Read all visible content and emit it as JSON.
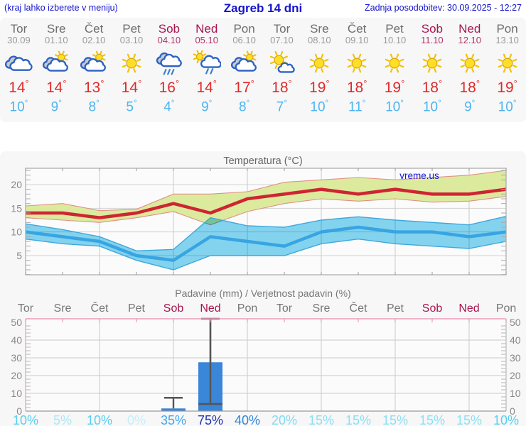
{
  "header": {
    "left_note": "(kraj lahko izberete v meniju)",
    "title": "Zagreb 14 dni",
    "last_update": "Zadnja posodobitev: 30.09.2025 - 12:27"
  },
  "degree_symbol": "°",
  "watermark": "vreme.us",
  "forecast_days": [
    {
      "name": "Tor",
      "date": "30.09",
      "icon": "cloudy",
      "tmax": "14",
      "tmin": "10",
      "weekend": false
    },
    {
      "name": "Sre",
      "date": "01.10",
      "icon": "partly-sunny",
      "tmax": "14",
      "tmin": "9",
      "weekend": false
    },
    {
      "name": "Čet",
      "date": "02.10",
      "icon": "partly-sunny",
      "tmax": "13",
      "tmin": "8",
      "weekend": false
    },
    {
      "name": "Pet",
      "date": "03.10",
      "icon": "sunny",
      "tmax": "14",
      "tmin": "5",
      "weekend": false
    },
    {
      "name": "Sob",
      "date": "04.10",
      "icon": "rain",
      "tmax": "16",
      "tmin": "4",
      "weekend": true
    },
    {
      "name": "Ned",
      "date": "05.10",
      "icon": "sun-rain",
      "tmax": "14",
      "tmin": "9",
      "weekend": true
    },
    {
      "name": "Pon",
      "date": "06.10",
      "icon": "partly-sunny",
      "tmax": "17",
      "tmin": "8",
      "weekend": false
    },
    {
      "name": "Tor",
      "date": "07.10",
      "icon": "mostly-sunny",
      "tmax": "18",
      "tmin": "7",
      "weekend": false
    },
    {
      "name": "Sre",
      "date": "08.10",
      "icon": "sunny",
      "tmax": "19",
      "tmin": "10",
      "weekend": false
    },
    {
      "name": "Čet",
      "date": "09.10",
      "icon": "sunny",
      "tmax": "18",
      "tmin": "11",
      "weekend": false
    },
    {
      "name": "Pet",
      "date": "10.10",
      "icon": "sunny",
      "tmax": "19",
      "tmin": "10",
      "weekend": false
    },
    {
      "name": "Sob",
      "date": "11.10",
      "icon": "sunny",
      "tmax": "18",
      "tmin": "10",
      "weekend": true
    },
    {
      "name": "Ned",
      "date": "12.10",
      "icon": "sunny",
      "tmax": "18",
      "tmin": "9",
      "weekend": true
    },
    {
      "name": "Pon",
      "date": "13.10",
      "icon": "sunny",
      "tmax": "19",
      "tmin": "10",
      "weekend": false
    }
  ],
  "chart_data": [
    {
      "type": "line",
      "title": "Temperatura (°C)",
      "xlabel": "",
      "ylabel": "",
      "ylim": [
        0,
        23.5
      ],
      "yticks": [
        5,
        10,
        15,
        20
      ],
      "grid": true,
      "x_days": [
        "Tor",
        "Sre",
        "Čet",
        "Pet",
        "Sob",
        "Ned",
        "Pon",
        "Tor",
        "Sre",
        "Čet",
        "Pet",
        "Sob",
        "Ned",
        "Pon"
      ],
      "series": [
        {
          "name": "tmax",
          "values": [
            14,
            14,
            13,
            14,
            16,
            14,
            17,
            18,
            19,
            18,
            19,
            18,
            18,
            19
          ]
        },
        {
          "name": "tmax_range_high",
          "values": [
            15.5,
            16,
            14.5,
            14.8,
            18,
            18,
            18.5,
            20.5,
            21,
            21.5,
            21,
            21.5,
            22,
            23
          ]
        },
        {
          "name": "tmax_range_low",
          "values": [
            13,
            12.5,
            12,
            13,
            14.3,
            11.5,
            14.3,
            16,
            17,
            16.5,
            17,
            16.3,
            16.5,
            17.5
          ]
        },
        {
          "name": "tmin",
          "values": [
            10,
            9,
            8,
            5,
            4,
            9,
            8,
            7,
            10,
            11,
            10,
            10,
            9,
            10
          ]
        },
        {
          "name": "tmin_range_high",
          "values": [
            11.7,
            10.5,
            9,
            6,
            6.3,
            13,
            11.3,
            11,
            12.5,
            13.2,
            12.5,
            12,
            11.5,
            13.3
          ]
        },
        {
          "name": "tmin_range_low",
          "values": [
            8.5,
            7.5,
            7,
            4,
            2,
            5,
            5,
            5,
            7.5,
            8.5,
            7.5,
            7,
            6.5,
            8
          ]
        }
      ],
      "colors": {
        "tmax_line": "#ce2533",
        "tmax_band": "#dcea9e",
        "tmax_band_edge": "#e09086",
        "tmin_line": "#38a5e2",
        "tmin_band": "#85d7f3",
        "tmin_band_edge": "#3fa8dc"
      }
    },
    {
      "type": "bar",
      "title": "Padavine (mm) / Verjetnost padavin (%)",
      "categories": [
        "Tor",
        "Sre",
        "Čet",
        "Pet",
        "Sob",
        "Ned",
        "Pon",
        "Tor",
        "Sre",
        "Čet",
        "Pet",
        "Sob",
        "Ned",
        "Pon"
      ],
      "weekend_indices": [
        4,
        5,
        11,
        12
      ],
      "ylim": [
        0,
        52
      ],
      "yticks": [
        0,
        10,
        20,
        30,
        40,
        50
      ],
      "values": [
        0,
        0,
        0,
        0,
        1.5,
        27.5,
        0,
        0,
        0,
        0,
        0,
        0,
        0,
        0
      ],
      "whisker_max": [
        null,
        null,
        null,
        null,
        7.5,
        52,
        null,
        null,
        null,
        null,
        null,
        null,
        null,
        null
      ],
      "whisker_min": [
        null,
        null,
        null,
        null,
        null,
        4,
        null,
        null,
        null,
        null,
        null,
        null,
        null,
        null
      ],
      "bar_color": "#3a86d8",
      "whisker_color": "#555555",
      "top_axis_color": "#ee9ab8",
      "probabilities": [
        {
          "label": "10%",
          "color": "#56cff2"
        },
        {
          "label": "5%",
          "color": "#a9e7f8"
        },
        {
          "label": "10%",
          "color": "#56cff2"
        },
        {
          "label": "0%",
          "color": "#c4f0fa"
        },
        {
          "label": "35%",
          "color": "#3fa7ec"
        },
        {
          "label": "75%",
          "color": "#2133ae"
        },
        {
          "label": "40%",
          "color": "#2c85dc"
        },
        {
          "label": "20%",
          "color": "#7edbf3"
        },
        {
          "label": "15%",
          "color": "#8adff4"
        },
        {
          "label": "15%",
          "color": "#8adff4"
        },
        {
          "label": "15%",
          "color": "#8adff4"
        },
        {
          "label": "15%",
          "color": "#8adff4"
        },
        {
          "label": "15%",
          "color": "#8adff4"
        },
        {
          "label": "10%",
          "color": "#56cff2"
        }
      ]
    }
  ]
}
